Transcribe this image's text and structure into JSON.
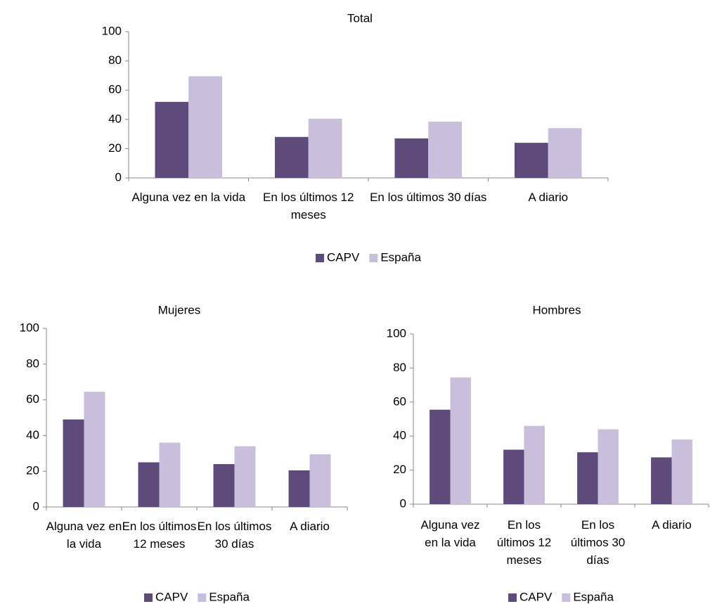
{
  "chart_data": [
    {
      "type": "bar",
      "title": "Total",
      "categories": [
        "Alguna vez en la vida",
        "En los últimos 12 meses",
        "En los últimos 30 días",
        "A diario"
      ],
      "series": [
        {
          "name": "CAPV",
          "color": "#5f4b7b",
          "values": [
            52,
            28,
            27,
            24
          ]
        },
        {
          "name": "España",
          "color": "#c9bfdc",
          "values": [
            69.5,
            40.5,
            38.5,
            34
          ]
        }
      ],
      "ylim": [
        0,
        100
      ],
      "yticks": [
        0,
        20,
        40,
        60,
        80,
        100
      ],
      "grid": false,
      "legend": "bottom"
    },
    {
      "type": "bar",
      "title": "Mujeres",
      "categories": [
        "Alguna vez en la vida",
        "En los últimos 12 meses",
        "En los últimos 30 días",
        "A diario"
      ],
      "series": [
        {
          "name": "CAPV",
          "color": "#5f4b7b",
          "values": [
            49,
            25,
            24,
            20.5
          ]
        },
        {
          "name": "España",
          "color": "#c9bfdc",
          "values": [
            64.5,
            36,
            34,
            29.5
          ]
        }
      ],
      "ylim": [
        0,
        100
      ],
      "yticks": [
        0,
        20,
        40,
        60,
        80,
        100
      ],
      "grid": false,
      "legend": "bottom"
    },
    {
      "type": "bar",
      "title": "Hombres",
      "categories": [
        "Alguna vez en la vida",
        "En los últimos 12 meses",
        "En los últimos 30 días",
        "A diario"
      ],
      "series": [
        {
          "name": "CAPV",
          "color": "#5f4b7b",
          "values": [
            55.5,
            32,
            30.5,
            27.5
          ]
        },
        {
          "name": "España",
          "color": "#c9bfdc",
          "values": [
            74.5,
            46,
            44,
            38
          ]
        }
      ],
      "ylim": [
        0,
        100
      ],
      "yticks": [
        0,
        20,
        40,
        60,
        80,
        100
      ],
      "grid": false,
      "legend": "bottom"
    }
  ]
}
